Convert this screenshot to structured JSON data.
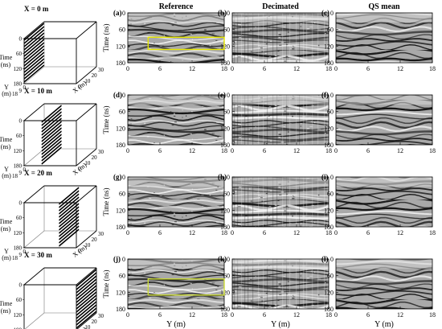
{
  "columns": [
    "Reference",
    "Decimated",
    "QS mean"
  ],
  "rows": [
    {
      "title": "X = 0 m",
      "slice_x": 0,
      "panels": [
        "(a)",
        "(b)",
        "(c)"
      ]
    },
    {
      "title": "X = 10 m",
      "slice_x": 10,
      "panels": [
        "(d)",
        "(e)",
        "(f)"
      ]
    },
    {
      "title": "X = 20 m",
      "slice_x": 20,
      "panels": [
        "(g)",
        "(h)",
        "(i)"
      ]
    },
    {
      "title": "X = 30 m",
      "slice_x": 30,
      "panels": [
        "(j)",
        "(k)",
        "(l)"
      ]
    }
  ],
  "axes": {
    "time_label": "Time (ns)",
    "time_ticks": [
      "0",
      "60",
      "120",
      "180"
    ],
    "y_label": "Y (m)",
    "y_ticks": [
      "0",
      "6",
      "12",
      "18"
    ],
    "ylim": [
      0,
      18
    ],
    "tlim": [
      0,
      180
    ]
  },
  "cube_axes": {
    "time_label": "Time",
    "time_unit": "(ns)",
    "time_ticks": [
      "0",
      "60",
      "120",
      "180"
    ],
    "y_label": "Y",
    "y_unit": "(m)",
    "y_ticks": [
      "0",
      "9",
      "18"
    ],
    "x_label": "X (m)",
    "x_ticks": [
      "0",
      "10",
      "20",
      "30"
    ]
  },
  "highlight_boxes": [
    {
      "row": 0,
      "col": 0,
      "color": "#e6e600",
      "y_range": [
        3.8,
        18
      ],
      "t_range": [
        88,
        132
      ]
    },
    {
      "row": 3,
      "col": 0,
      "color": "#cddc39",
      "y_range": [
        3.8,
        18
      ],
      "t_range": [
        72,
        130
      ]
    }
  ]
}
